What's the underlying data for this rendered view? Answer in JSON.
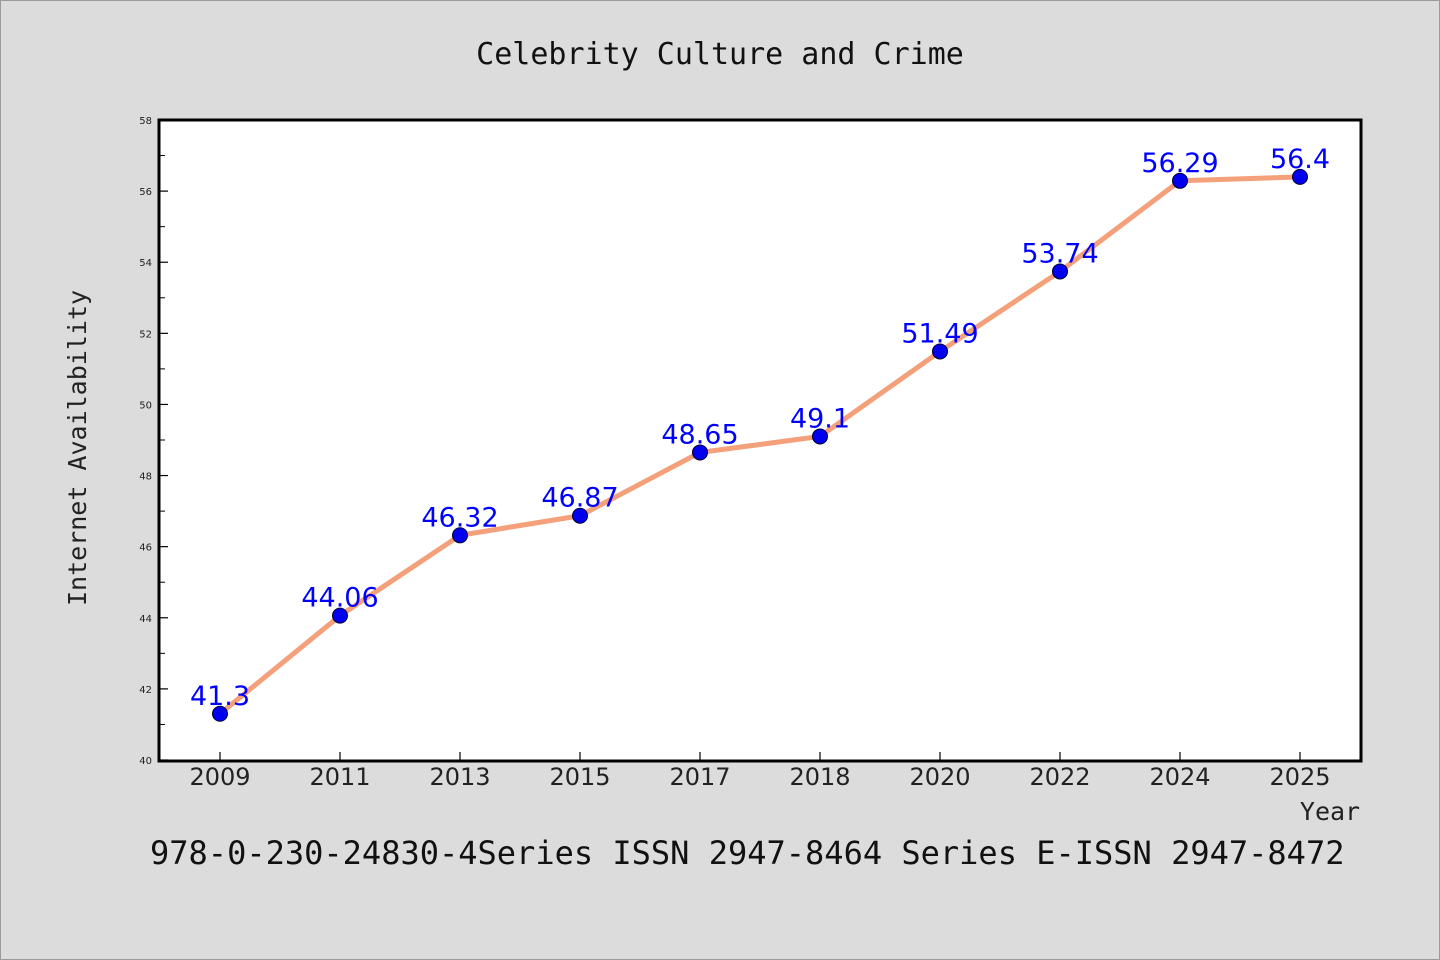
{
  "chart_data": {
    "type": "line",
    "title": "Celebrity Culture and Crime",
    "xlabel": "Year",
    "ylabel": "Internet Availability",
    "categories": [
      "2009",
      "2011",
      "2013",
      "2015",
      "2017",
      "2018",
      "2020",
      "2022",
      "2024",
      "2025"
    ],
    "series": [
      {
        "values": [
          41.3,
          44.06,
          46.32,
          46.87,
          48.65,
          49.1,
          51.49,
          53.74,
          56.29,
          56.4
        ],
        "data_labels": [
          "41.3",
          "44.06",
          "46.32",
          "46.87",
          "48.65",
          "49.1",
          "51.49",
          "53.74",
          "56.29",
          "56.4"
        ],
        "line_color": "#f4a07a",
        "marker_color": "#0000ee"
      }
    ],
    "ylim": [
      40,
      58
    ],
    "yticks": [
      40,
      42,
      44,
      46,
      48,
      50,
      52,
      54,
      56,
      58
    ],
    "grid": false,
    "legend": "none"
  },
  "footer": {
    "text": "978-0-230-24830-4Series ISSN 2947-8464 Series E-ISSN 2947-8472"
  },
  "colors": {
    "background": "#dcdcdc",
    "plot_area": "#ffffff",
    "label": "#0000ff"
  }
}
